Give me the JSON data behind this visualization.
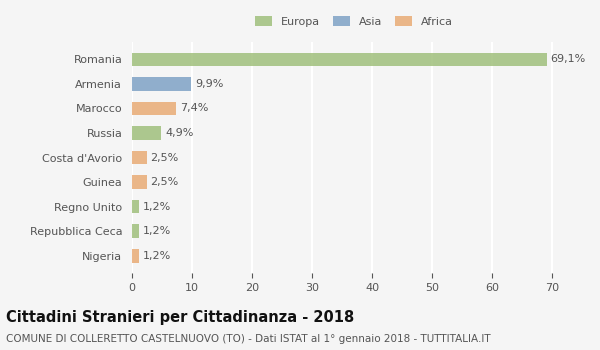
{
  "categories": [
    "Nigeria",
    "Repubblica Ceca",
    "Regno Unito",
    "Guinea",
    "Costa d'Avorio",
    "Russia",
    "Marocco",
    "Armenia",
    "Romania"
  ],
  "values": [
    1.2,
    1.2,
    1.2,
    2.5,
    2.5,
    4.9,
    7.4,
    9.9,
    69.1
  ],
  "labels": [
    "1,2%",
    "1,2%",
    "1,2%",
    "2,5%",
    "2,5%",
    "4,9%",
    "7,4%",
    "9,9%",
    "69,1%"
  ],
  "colors": [
    "#e8a870",
    "#9cbd77",
    "#9cbd77",
    "#e8a870",
    "#e8a870",
    "#9cbd77",
    "#e8a870",
    "#7a9fc4",
    "#9cbd77"
  ],
  "legend_labels": [
    "Europa",
    "Asia",
    "Africa"
  ],
  "legend_colors": [
    "#9cbd77",
    "#7a9fc4",
    "#e8a870"
  ],
  "xlim": [
    0,
    74
  ],
  "xticks": [
    0,
    10,
    20,
    30,
    40,
    50,
    60,
    70
  ],
  "title": "Cittadini Stranieri per Cittadinanza - 2018",
  "subtitle": "COMUNE DI COLLERETTO CASTELNUOVO (TO) - Dati ISTAT al 1° gennaio 2018 - TUTTITALIA.IT",
  "bg_color": "#f5f5f5",
  "bar_height": 0.55,
  "label_fontsize": 8.0,
  "title_fontsize": 10.5,
  "subtitle_fontsize": 7.5,
  "grid_color": "#ffffff",
  "tick_label_color": "#555555"
}
